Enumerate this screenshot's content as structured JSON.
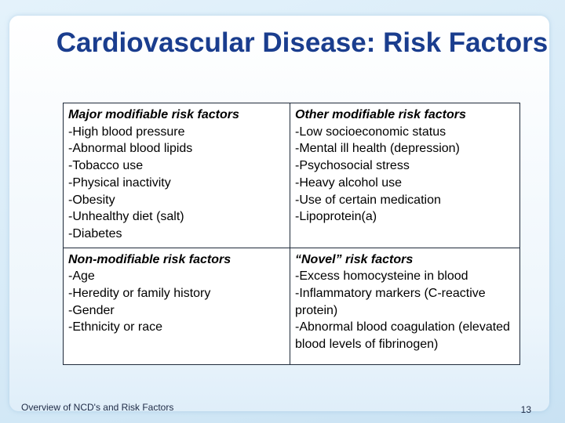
{
  "slide": {
    "title": "Cardiovascular Disease: Risk Factors",
    "footer": "Overview of NCD's and Risk Factors",
    "page_number": "13"
  },
  "table": {
    "major": {
      "heading": "Major modifiable risk factors",
      "items": [
        "-High blood pressure",
        "-Abnormal blood lipids",
        "-Tobacco use",
        "-Physical inactivity",
        "-Obesity",
        "-Unhealthy diet (salt)",
        "-Diabetes"
      ]
    },
    "other": {
      "heading": "Other modifiable risk factors",
      "items": [
        "-Low socioeconomic status",
        "-Mental ill health (depression)",
        "-Psychosocial stress",
        "-Heavy alcohol use",
        "-Use of certain medication",
        "-Lipoprotein(a)"
      ]
    },
    "nonmod": {
      "heading": "Non-modifiable risk factors",
      "items": [
        "-Age",
        "-Heredity or family history",
        "-Gender",
        "-Ethnicity or race"
      ]
    },
    "novel": {
      "heading": "“Novel” risk factors",
      "items": [
        "-Excess homocysteine in blood",
        "-Inflammatory markers (C-reactive protein)",
        "-Abnormal blood coagulation (elevated blood levels of fibrinogen)"
      ]
    }
  }
}
